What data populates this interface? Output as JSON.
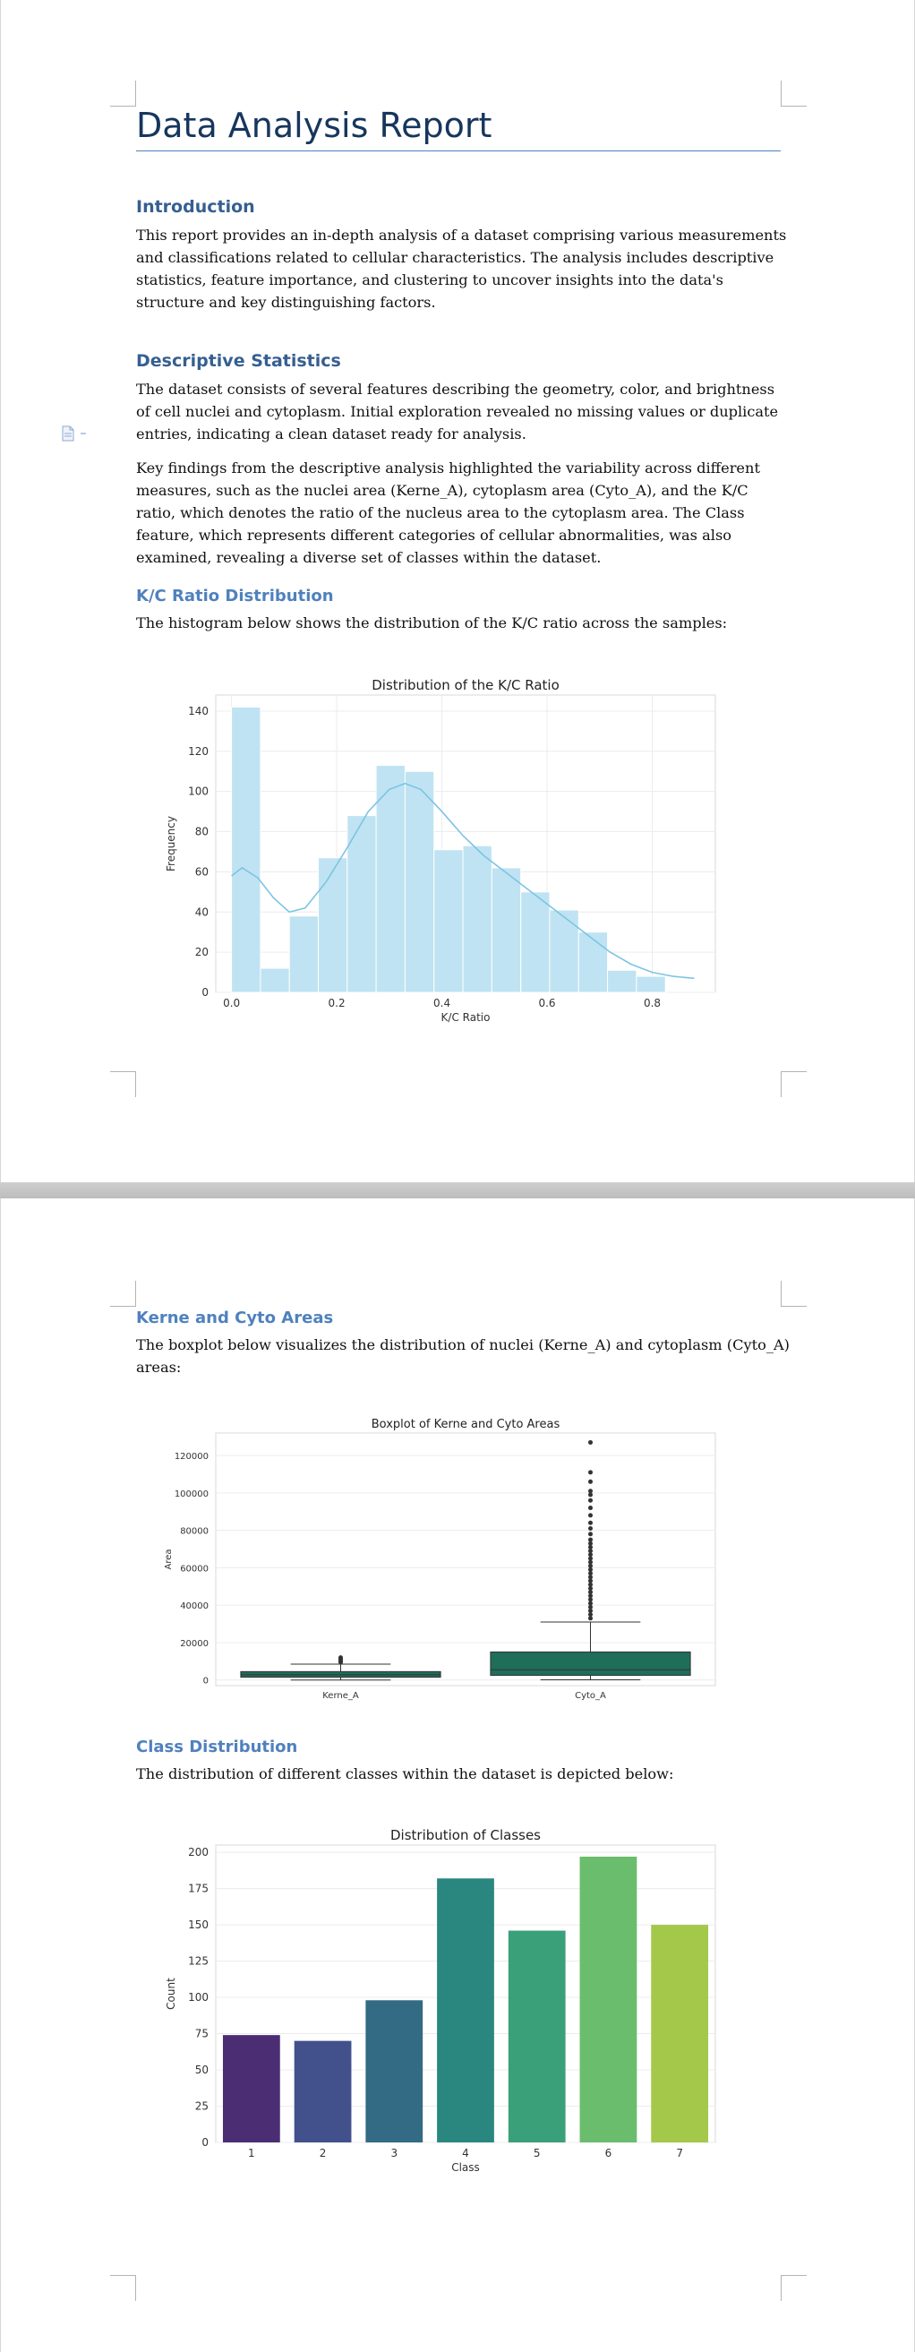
{
  "document": {
    "title": "Data Analysis Report",
    "sections": {
      "introduction": {
        "heading": "Introduction",
        "text": "This report provides an in-depth analysis of a dataset comprising various measurements and classifications related to cellular characteristics. The analysis includes descriptive statistics, feature importance, and clustering to uncover insights into the data's structure and key distinguishing factors."
      },
      "descriptive": {
        "heading": "Descriptive Statistics",
        "text1": "The dataset consists of several features describing the geometry, color, and brightness of cell nuclei and cytoplasm. Initial exploration revealed no missing values or duplicate entries, indicating a clean dataset ready for analysis.",
        "text2": "Key findings from the descriptive analysis highlighted the variability across different measures, such as the nuclei area (Kerne_A), cytoplasm area (Cyto_A), and the K/C ratio, which denotes the ratio of the nucleus area to the cytoplasm area. The Class feature, which represents different categories of cellular abnormalities, was also examined, revealing a diverse set of classes within the dataset."
      },
      "kc_ratio": {
        "heading": "K/C Ratio Distribution",
        "text": "The histogram below shows the distribution of the K/C ratio across the samples:"
      },
      "areas": {
        "heading": "Kerne and Cyto Areas",
        "text": "The boxplot below visualizes the distribution of nuclei (Kerne_A) and cytoplasm (Cyto_A) areas:"
      },
      "classes": {
        "heading": "Class Distribution",
        "text": "The distribution of different classes within the dataset is depicted below:"
      }
    }
  },
  "colors": {
    "title": "#17365d",
    "heading": "#365f91",
    "subheading": "#4f81bd",
    "hist_fill": "#bfe3f2",
    "kde_line": "#7cc4e4",
    "box_fill": "#1e6e5a"
  },
  "chart_data": [
    {
      "type": "bar",
      "subtype": "histogram-with-kde",
      "title": "Distribution of the K/C Ratio",
      "xlabel": "K/C Ratio",
      "ylabel": "Frequency",
      "xlim": [
        -0.03,
        0.92
      ],
      "ylim": [
        0,
        148
      ],
      "xticks": [
        "0.0",
        "0.2",
        "0.4",
        "0.6",
        "0.8"
      ],
      "yticks": [
        "0",
        "20",
        "40",
        "60",
        "80",
        "100",
        "120",
        "140"
      ],
      "grid": true,
      "bins": [
        {
          "x0": 0.0,
          "x1": 0.055,
          "count": 142
        },
        {
          "x0": 0.055,
          "x1": 0.11,
          "count": 12
        },
        {
          "x0": 0.11,
          "x1": 0.165,
          "count": 38
        },
        {
          "x0": 0.165,
          "x1": 0.22,
          "count": 67
        },
        {
          "x0": 0.22,
          "x1": 0.275,
          "count": 88
        },
        {
          "x0": 0.275,
          "x1": 0.33,
          "count": 113
        },
        {
          "x0": 0.33,
          "x1": 0.385,
          "count": 110
        },
        {
          "x0": 0.385,
          "x1": 0.44,
          "count": 71
        },
        {
          "x0": 0.44,
          "x1": 0.495,
          "count": 73
        },
        {
          "x0": 0.495,
          "x1": 0.55,
          "count": 62
        },
        {
          "x0": 0.55,
          "x1": 0.605,
          "count": 50
        },
        {
          "x0": 0.605,
          "x1": 0.66,
          "count": 41
        },
        {
          "x0": 0.66,
          "x1": 0.715,
          "count": 30
        },
        {
          "x0": 0.715,
          "x1": 0.77,
          "count": 11
        },
        {
          "x0": 0.77,
          "x1": 0.825,
          "count": 8
        },
        {
          "x0": 0.825,
          "x1": 0.88,
          "count": 0
        }
      ],
      "kde": [
        [
          0.0,
          58
        ],
        [
          0.02,
          62
        ],
        [
          0.05,
          57
        ],
        [
          0.08,
          47
        ],
        [
          0.11,
          40
        ],
        [
          0.14,
          42
        ],
        [
          0.18,
          55
        ],
        [
          0.22,
          72
        ],
        [
          0.26,
          90
        ],
        [
          0.3,
          101
        ],
        [
          0.33,
          104
        ],
        [
          0.36,
          101
        ],
        [
          0.4,
          90
        ],
        [
          0.44,
          78
        ],
        [
          0.48,
          68
        ],
        [
          0.52,
          60
        ],
        [
          0.56,
          52
        ],
        [
          0.6,
          44
        ],
        [
          0.64,
          36
        ],
        [
          0.68,
          28
        ],
        [
          0.72,
          20
        ],
        [
          0.76,
          14
        ],
        [
          0.8,
          10
        ],
        [
          0.84,
          8
        ],
        [
          0.88,
          7
        ]
      ]
    },
    {
      "type": "box",
      "title": "Boxplot of Kerne and Cyto Areas",
      "xlabel": "",
      "ylabel": "Area",
      "ylim": [
        -3000,
        132000
      ],
      "yticks": [
        "0",
        "20000",
        "40000",
        "60000",
        "80000",
        "100000",
        "120000"
      ],
      "grid": true,
      "boxes": [
        {
          "name": "Kerne_A",
          "whisker_low": 0,
          "q1": 1500,
          "median": 2800,
          "q3": 4500,
          "whisker_high": 8500,
          "outliers": [
            9500,
            10200,
            10800,
            11500,
            12000
          ]
        },
        {
          "name": "Cyto_A",
          "whisker_low": 100,
          "q1": 2500,
          "median": 5500,
          "q3": 15000,
          "whisker_high": 31000,
          "outliers": [
            33000,
            35000,
            37000,
            39000,
            41000,
            43000,
            45000,
            47000,
            49000,
            51000,
            53000,
            55000,
            57000,
            59000,
            61000,
            63000,
            65000,
            67000,
            69000,
            71000,
            73000,
            75000,
            78000,
            81000,
            84000,
            88000,
            92000,
            96000,
            99000,
            101000,
            106000,
            111000,
            127000
          ]
        }
      ]
    },
    {
      "type": "bar",
      "title": "Distribution of Classes",
      "xlabel": "Class",
      "ylabel": "Count",
      "categories": [
        "1",
        "2",
        "3",
        "4",
        "5",
        "6",
        "7"
      ],
      "values": [
        74,
        70,
        98,
        182,
        146,
        197,
        150
      ],
      "colors": [
        "#4b2d73",
        "#42518b",
        "#336a84",
        "#2a8780",
        "#3aa07a",
        "#6abd6c",
        "#a4c84a"
      ],
      "ylim": [
        0,
        205
      ],
      "yticks": [
        "0",
        "25",
        "50",
        "75",
        "100",
        "125",
        "150",
        "175",
        "200"
      ],
      "grid": true
    }
  ]
}
